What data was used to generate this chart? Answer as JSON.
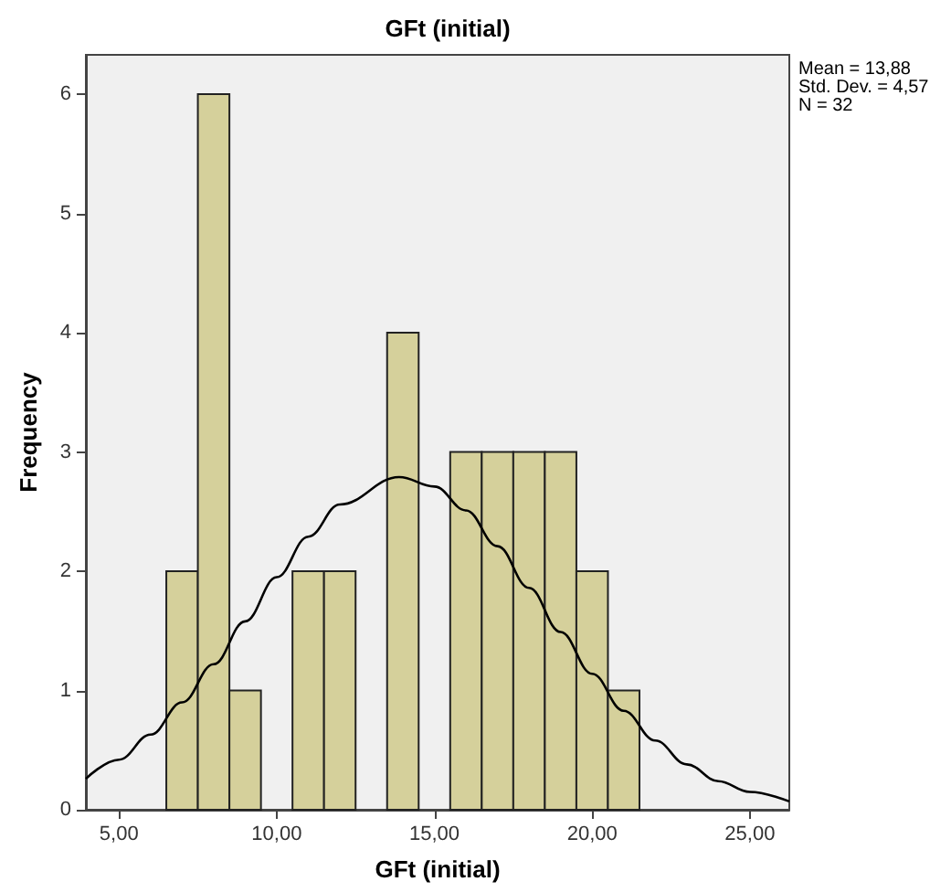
{
  "chart_data": {
    "type": "histogram",
    "title": "GFt (initial)",
    "xlabel": "GFt (initial)",
    "ylabel": "Frequency",
    "annotations": [
      "Mean = 13,88\nStd. Dev. = 4,57\nN = 32"
    ],
    "bins": [
      6.5,
      7.5,
      8.5,
      9.5,
      10.5,
      11.5,
      12.5,
      13.5,
      14.5,
      15.5,
      16.5,
      17.5,
      18.5,
      19.5,
      20.5,
      21.5
    ],
    "values": [
      2,
      6,
      1,
      0,
      2,
      2,
      0,
      4,
      0,
      3,
      3,
      3,
      3,
      2,
      1
    ],
    "color": "#d5d09b",
    "series": [
      {
        "type": "line",
        "color": "#000000",
        "x": [
          3.95,
          5,
          6,
          7,
          8,
          9,
          10,
          11,
          12,
          13.88,
          15,
          16,
          17,
          18,
          19,
          20,
          21,
          22,
          23,
          24,
          25,
          26.25
        ],
        "values": [
          0.26,
          0.42,
          0.63,
          0.9,
          1.22,
          1.58,
          1.95,
          2.29,
          2.56,
          2.79,
          2.71,
          2.51,
          2.21,
          1.86,
          1.49,
          1.14,
          0.83,
          0.58,
          0.38,
          0.24,
          0.15,
          0.07
        ]
      }
    ],
    "xlim": [
      3.95,
      26.25
    ],
    "xticks": [
      {
        "value": 5,
        "label": "5,00"
      },
      {
        "value": 10,
        "label": "10,00"
      },
      {
        "value": 15,
        "label": "15,00"
      },
      {
        "value": 20,
        "label": "20,00"
      },
      {
        "value": 25,
        "label": "25,00"
      }
    ],
    "ylim": [
      0,
      6.33
    ],
    "yticks": [
      0,
      1,
      2,
      3,
      4,
      5,
      6
    ],
    "grid": false,
    "legend": false,
    "marker": "none",
    "line_style": "solid"
  }
}
